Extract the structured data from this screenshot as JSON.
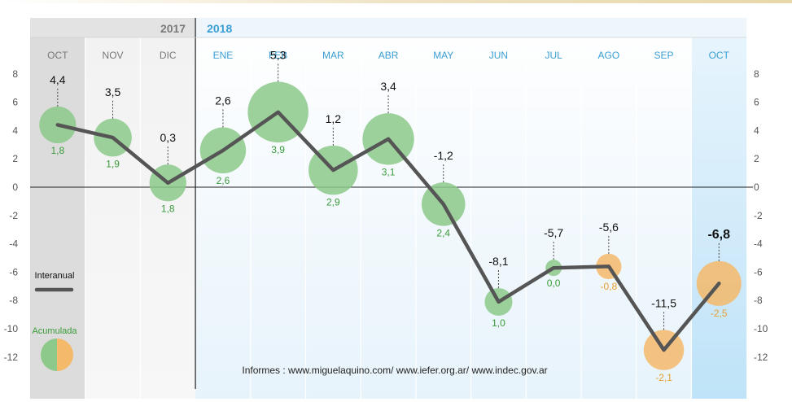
{
  "chart_data": {
    "type": "line",
    "years": [
      {
        "label": "2017",
        "color": "#7a7a7a"
      },
      {
        "label": "2018",
        "color": "#3a9fd3"
      }
    ],
    "categories": [
      "OCT",
      "NOV",
      "DIC",
      "ENE",
      "FEB",
      "MAR",
      "ABR",
      "MAY",
      "JUN",
      "JUL",
      "AGO",
      "SEP",
      "OCT"
    ],
    "category_year": [
      "2017",
      "2017",
      "2017",
      "2018",
      "2018",
      "2018",
      "2018",
      "2018",
      "2018",
      "2018",
      "2018",
      "2018",
      "2018"
    ],
    "series": [
      {
        "name": "Interanual",
        "values": [
          4.4,
          3.5,
          0.3,
          2.6,
          5.3,
          1.2,
          3.4,
          -1.2,
          -8.1,
          -5.7,
          -5.6,
          -11.5,
          -6.8
        ],
        "labels": [
          "4,4",
          "3,5",
          "0,3",
          "2,6",
          "5,3",
          "1,2",
          "3,4",
          "-1,2",
          "-8,1",
          "-5,7",
          "-5,6",
          "-11,5",
          "-6,8"
        ],
        "color": "#555555"
      },
      {
        "name": "Acumulada",
        "values": [
          1.8,
          1.9,
          1.8,
          2.6,
          3.9,
          2.9,
          3.1,
          2.4,
          1.0,
          0.0,
          -0.8,
          -2.1,
          -2.5
        ],
        "labels": [
          "1,8",
          "1,9",
          "1,8",
          "2,6",
          "3,9",
          "2,9",
          "3,1",
          "2,4",
          "1,0",
          "0,0",
          "-0,8",
          "-2,1",
          "-2,5"
        ],
        "positive_color": "#8cc98a",
        "negative_color": "#f5b96a"
      }
    ],
    "yticks": [
      "8",
      "6",
      "4",
      "2",
      "0",
      "-2",
      "-4",
      "-6",
      "-8",
      "-10",
      "-12"
    ],
    "ylim": [
      -14,
      9
    ],
    "legend": {
      "interanual_label": "Interanual",
      "acumulada_label": "Acumulada",
      "placement": "left"
    },
    "source_note": "Informes : www.miguelaquino.com/ www.iefer.org.ar/ www.indec.gov.ar",
    "colors": {
      "label_green": "#3a9a3a",
      "label_orange": "#e8a030",
      "month_2018": "#3a9fd3",
      "month_2017": "#777777"
    }
  }
}
